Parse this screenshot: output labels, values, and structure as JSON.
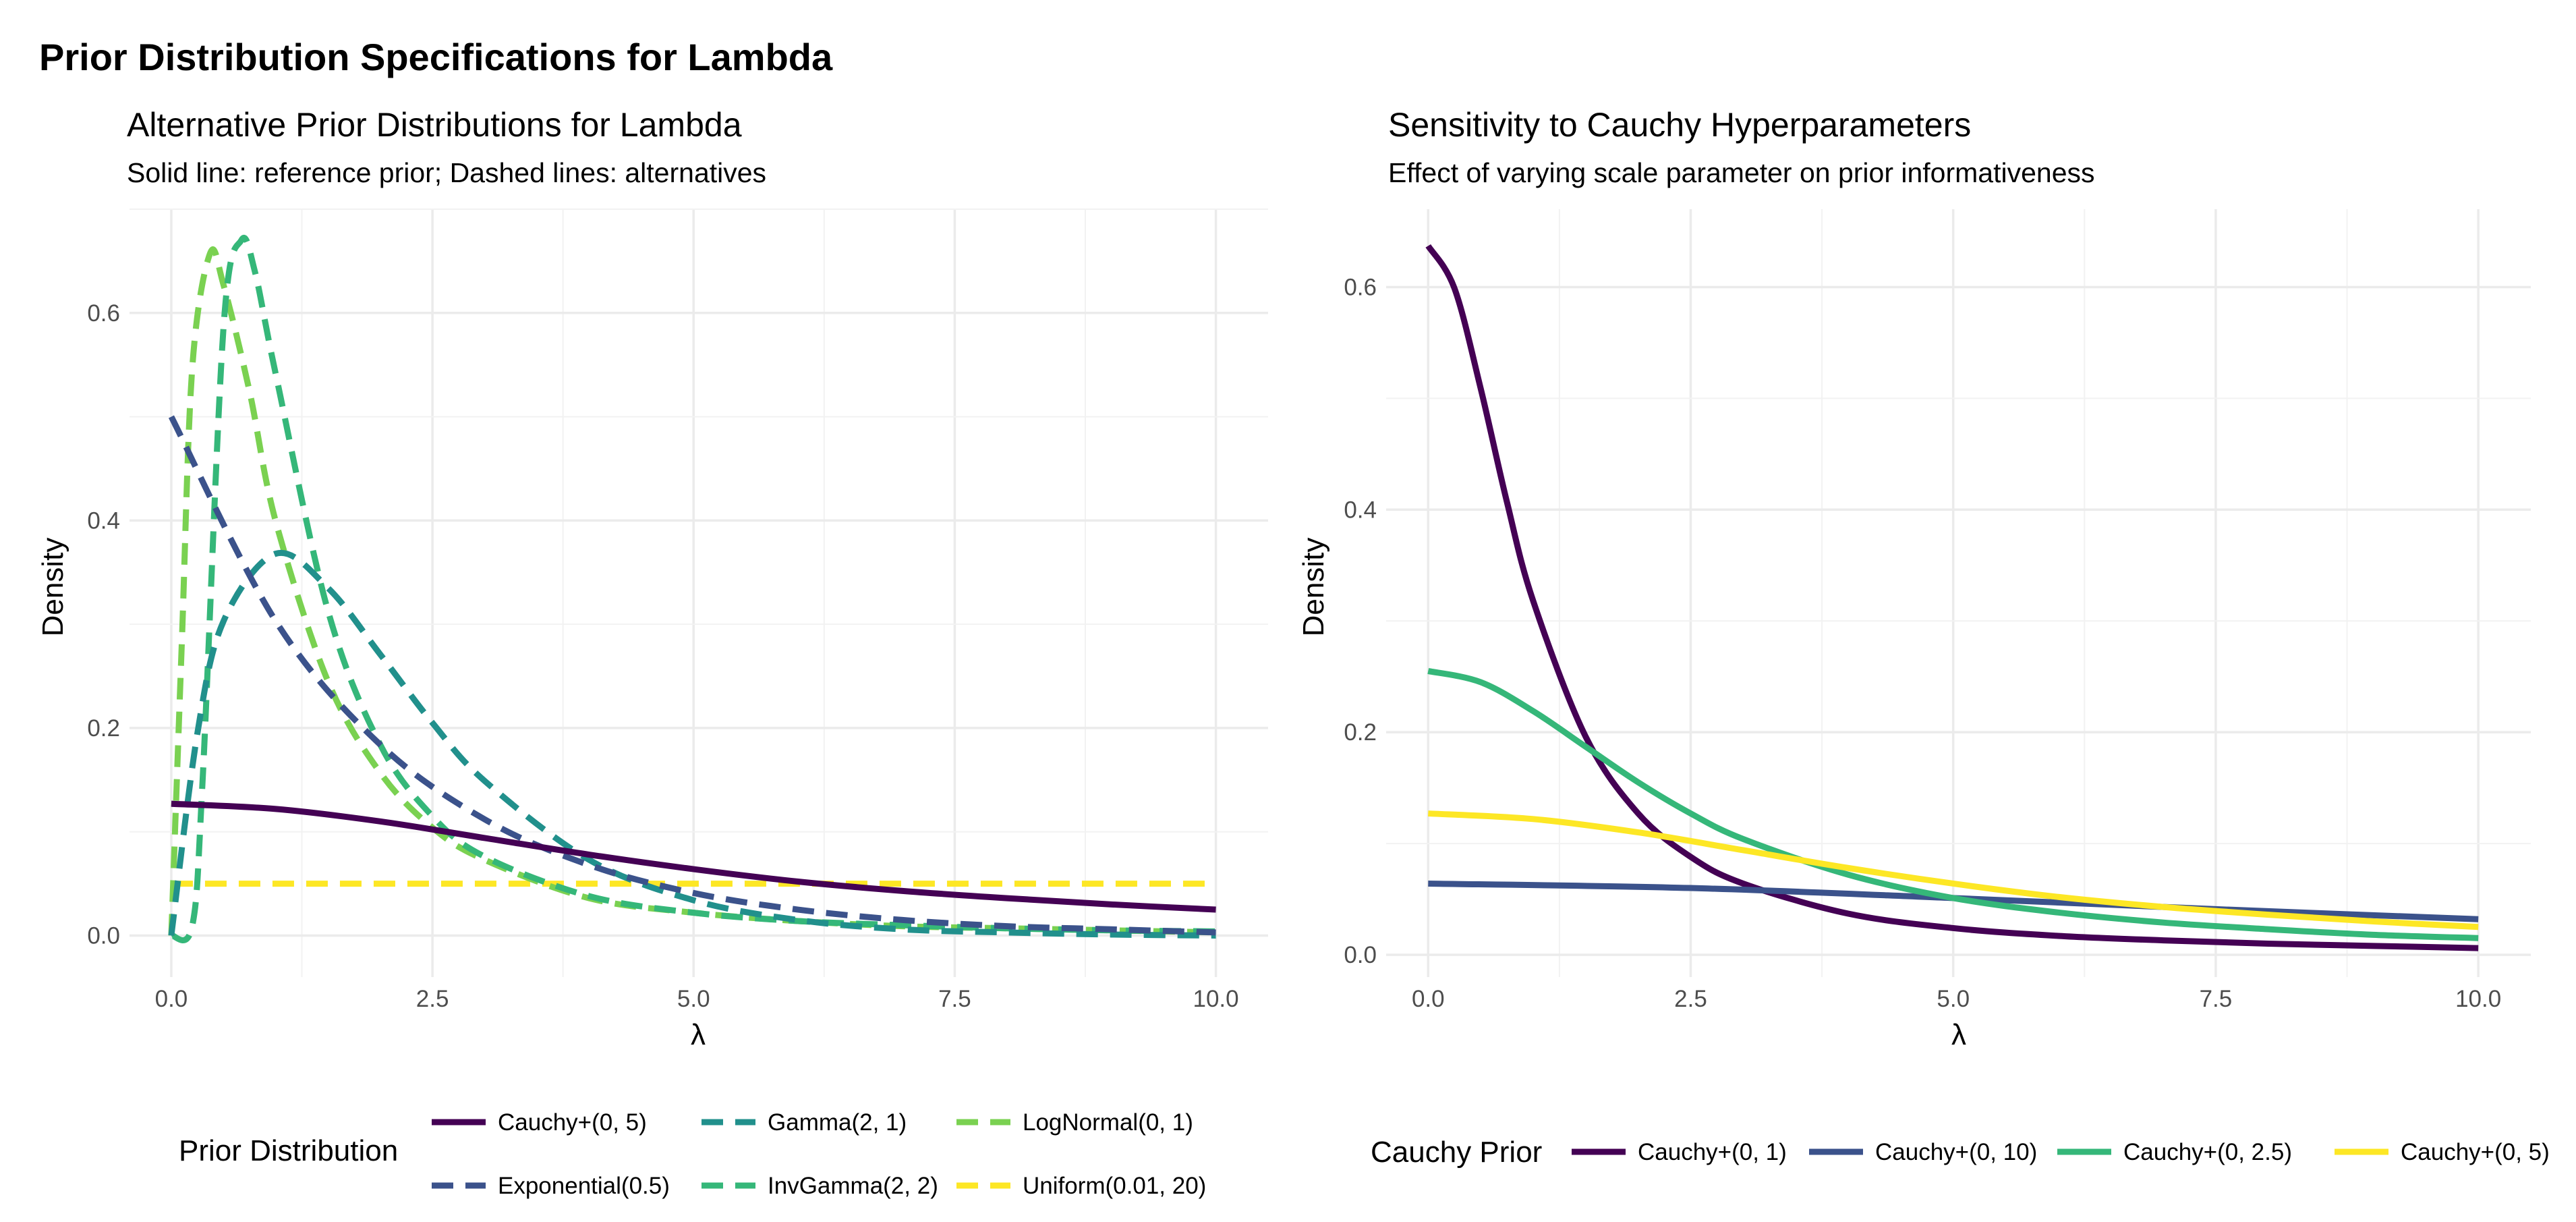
{
  "figure": {
    "title": "Prior Distribution Specifications for Lambda"
  },
  "colors": {
    "viridis_1": "#440154",
    "viridis_2": "#3B528B",
    "viridis_3": "#21908C",
    "viridis_4": "#35B779",
    "viridis_5": "#7AD151",
    "viridis_6": "#FDE725",
    "grid": "#EBEBEB",
    "tick_text": "#4D4D4D"
  },
  "chart_data": [
    {
      "type": "line",
      "title": "Alternative Prior Distributions for Lambda",
      "subtitle": "Solid line: reference prior; Dashed lines: alternatives",
      "xlabel": "λ",
      "ylabel": "Density",
      "xlim": [
        -0.4,
        10.5
      ],
      "ylim": [
        -0.04,
        0.7
      ],
      "x_ticks": [
        0,
        2.5,
        5,
        7.5,
        10
      ],
      "x_tick_labels": [
        "0.0",
        "2.5",
        "5.0",
        "7.5",
        "10.0"
      ],
      "y_ticks": [
        0,
        0.2,
        0.4,
        0.6
      ],
      "y_tick_labels": [
        "0.0",
        "0.2",
        "0.4",
        "0.6"
      ],
      "grid": true,
      "legend": {
        "title": "Prior Distribution",
        "position": "bottom",
        "columns": 3,
        "items": [
          "Cauchy+(0, 5)",
          "Exponential(0.5)",
          "Gamma(2, 1)",
          "InvGamma(2, 2)",
          "LogNormal(0, 1)",
          "Uniform(0.01, 20)"
        ]
      },
      "series": [
        {
          "name": "Cauchy+(0, 5)",
          "color": "#440154",
          "dash": "solid",
          "x": [
            0,
            1,
            2,
            3,
            4,
            5,
            6,
            7,
            8,
            9,
            10
          ],
          "y": [
            0.127,
            0.122,
            0.11,
            0.094,
            0.078,
            0.064,
            0.052,
            0.043,
            0.036,
            0.03,
            0.025
          ]
        },
        {
          "name": "Exponential(0.5)",
          "color": "#3B528B",
          "dash": "dashed",
          "x": [
            0,
            1,
            2,
            3,
            4,
            5,
            6,
            7,
            8,
            9,
            10
          ],
          "y": [
            0.5,
            0.303,
            0.184,
            0.112,
            0.068,
            0.041,
            0.025,
            0.015,
            0.009,
            0.006,
            0.003
          ]
        },
        {
          "name": "Gamma(2, 1)",
          "color": "#21908C",
          "dash": "dashed",
          "x": [
            0,
            0.25,
            0.5,
            1,
            1.5,
            2,
            2.5,
            3,
            4,
            5,
            6,
            7,
            8,
            9,
            10
          ],
          "y": [
            0,
            0.195,
            0.303,
            0.368,
            0.335,
            0.271,
            0.205,
            0.149,
            0.073,
            0.034,
            0.015,
            0.006,
            0.003,
            0.001,
            0
          ]
        },
        {
          "name": "InvGamma(2, 2)",
          "color": "#35B779",
          "dash": "dashed",
          "x": [
            0,
            0.2,
            0.3,
            0.5,
            0.67,
            0.8,
            1,
            1.5,
            2,
            2.5,
            3,
            4,
            5,
            6,
            7,
            8,
            9,
            10
          ],
          "y": [
            0,
            0.009,
            0.15,
            0.586,
            0.67,
            0.64,
            0.541,
            0.313,
            0.184,
            0.115,
            0.076,
            0.038,
            0.022,
            0.014,
            0.01,
            0.007,
            0.005,
            0.004
          ]
        },
        {
          "name": "LogNormal(0, 1)",
          "color": "#7AD151",
          "dash": "dashed",
          "x": [
            0,
            0.1,
            0.2,
            0.37,
            0.5,
            0.75,
            1,
            1.5,
            2,
            2.5,
            3,
            4,
            5,
            6,
            7,
            8,
            9,
            10
          ],
          "y": [
            0,
            0.28,
            0.546,
            0.657,
            0.627,
            0.524,
            0.399,
            0.245,
            0.157,
            0.104,
            0.073,
            0.036,
            0.022,
            0.014,
            0.009,
            0.007,
            0.005,
            0.003
          ]
        },
        {
          "name": "Uniform(0.01, 20)",
          "color": "#FDE725",
          "dash": "dashed",
          "x": [
            0,
            10
          ],
          "y": [
            0.05,
            0.05
          ]
        }
      ]
    },
    {
      "type": "line",
      "title": "Sensitivity to Cauchy Hyperparameters",
      "subtitle": "Effect of varying scale parameter on prior informativeness",
      "xlabel": "λ",
      "ylabel": "Density",
      "xlim": [
        -0.4,
        10.5
      ],
      "ylim": [
        -0.02,
        0.67
      ],
      "x_ticks": [
        0,
        2.5,
        5,
        7.5,
        10
      ],
      "x_tick_labels": [
        "0.0",
        "2.5",
        "5.0",
        "7.5",
        "10.0"
      ],
      "y_ticks": [
        0,
        0.2,
        0.4,
        0.6
      ],
      "y_tick_labels": [
        "0.0",
        "0.2",
        "0.4",
        "0.6"
      ],
      "grid": true,
      "legend": {
        "title": "Cauchy Prior",
        "position": "bottom",
        "columns": 4,
        "items": [
          "Cauchy+(0, 1)",
          "Cauchy+(0, 10)",
          "Cauchy+(0, 2.5)",
          "Cauchy+(0, 5)"
        ]
      },
      "series": [
        {
          "name": "Cauchy+(0, 1)",
          "color": "#440154",
          "dash": "solid",
          "x": [
            0,
            0.25,
            0.5,
            0.75,
            1,
            1.5,
            2,
            2.5,
            3,
            4,
            5,
            6,
            7,
            8,
            9,
            10
          ],
          "y": [
            0.637,
            0.599,
            0.509,
            0.407,
            0.318,
            0.196,
            0.127,
            0.088,
            0.064,
            0.037,
            0.024,
            0.017,
            0.013,
            0.01,
            0.008,
            0.006
          ]
        },
        {
          "name": "Cauchy+(0, 10)",
          "color": "#3B528B",
          "dash": "solid",
          "x": [
            0,
            2.5,
            5,
            7.5,
            10
          ],
          "y": [
            0.064,
            0.06,
            0.051,
            0.041,
            0.032
          ]
        },
        {
          "name": "Cauchy+(0, 2.5)",
          "color": "#35B779",
          "dash": "solid",
          "x": [
            0,
            0.5,
            1,
            1.5,
            2,
            2.5,
            3,
            4,
            5,
            6,
            7,
            8,
            9,
            10
          ],
          "y": [
            0.255,
            0.245,
            0.219,
            0.187,
            0.155,
            0.127,
            0.104,
            0.072,
            0.051,
            0.038,
            0.029,
            0.023,
            0.018,
            0.015
          ]
        },
        {
          "name": "Cauchy+(0, 5)",
          "color": "#FDE725",
          "dash": "solid",
          "x": [
            0,
            1,
            2,
            3,
            4,
            5,
            6,
            7,
            8,
            9,
            10
          ],
          "y": [
            0.127,
            0.122,
            0.11,
            0.094,
            0.078,
            0.064,
            0.052,
            0.043,
            0.036,
            0.03,
            0.025
          ]
        }
      ]
    }
  ]
}
